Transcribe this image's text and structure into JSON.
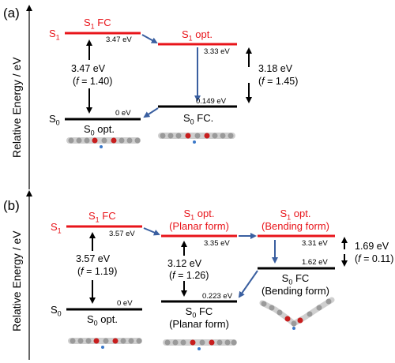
{
  "colors": {
    "s1": "#e8141a",
    "s0": "#000000",
    "relax_arrow": "#3a5fa0"
  },
  "a": {
    "label": "(a)",
    "axis": "Relative Energy / eV",
    "s1": "S",
    "s1_sub": "1",
    "s0": "S",
    "s0_sub": "0",
    "s1fc": {
      "s": "S",
      "sub": "1",
      "rest": " FC",
      "value": "3.47 eV"
    },
    "s1opt": {
      "s": "S",
      "sub": "1",
      "rest": " opt.",
      "value": "3.33 eV"
    },
    "s0opt": {
      "s": "S",
      "sub": "0",
      "rest": " opt.",
      "value": "0 eV"
    },
    "s0fc": {
      "s": "S",
      "sub": "0",
      "rest": " FC.",
      "value": "0.149 eV"
    },
    "abs": {
      "e": "3.47 eV",
      "f_open": "(",
      "f": "f",
      "f_val": " = 1.40)"
    },
    "emi": {
      "e": "3.18 eV",
      "f_open": "(",
      "f": "f",
      "f_val": " = 1.45)"
    }
  },
  "b": {
    "label": "(b)",
    "axis": "Relative Energy / eV",
    "s1": "S",
    "s1_sub": "1",
    "s0": "S",
    "s0_sub": "0",
    "s1fc": {
      "s": "S",
      "sub": "1",
      "rest": " FC",
      "value": "3.57 eV"
    },
    "s1planar": {
      "s": "S",
      "sub": "1",
      "rest": " opt.",
      "form": "(Planar form)",
      "value": "3.35 eV"
    },
    "s1bend": {
      "s": "S",
      "sub": "1",
      "rest": " opt.",
      "form": "(Bending form)",
      "value": "3.31 eV"
    },
    "s0bend": {
      "s": "S",
      "sub": "0",
      "rest": " FC",
      "form": "(Bending form)",
      "value": "1.62 eV"
    },
    "s0planar": {
      "s": "S",
      "sub": "0",
      "rest": " FC",
      "form": "(Planar form)",
      "value": "0.223 eV"
    },
    "s0opt": {
      "s": "S",
      "sub": "0",
      "rest": " opt.",
      "value": "0 eV"
    },
    "abs": {
      "e": "3.57 eV",
      "f_open": "(",
      "f": "f",
      "f_val": " = 1.19)"
    },
    "emi_planar": {
      "e": "3.12 eV",
      "f_open": "(",
      "f": "f",
      "f_val": " = 1.26)"
    },
    "emi_bend": {
      "e": "1.69 eV",
      "f_open": "(",
      "f": "f",
      "f_val": " = 0.11)"
    }
  }
}
